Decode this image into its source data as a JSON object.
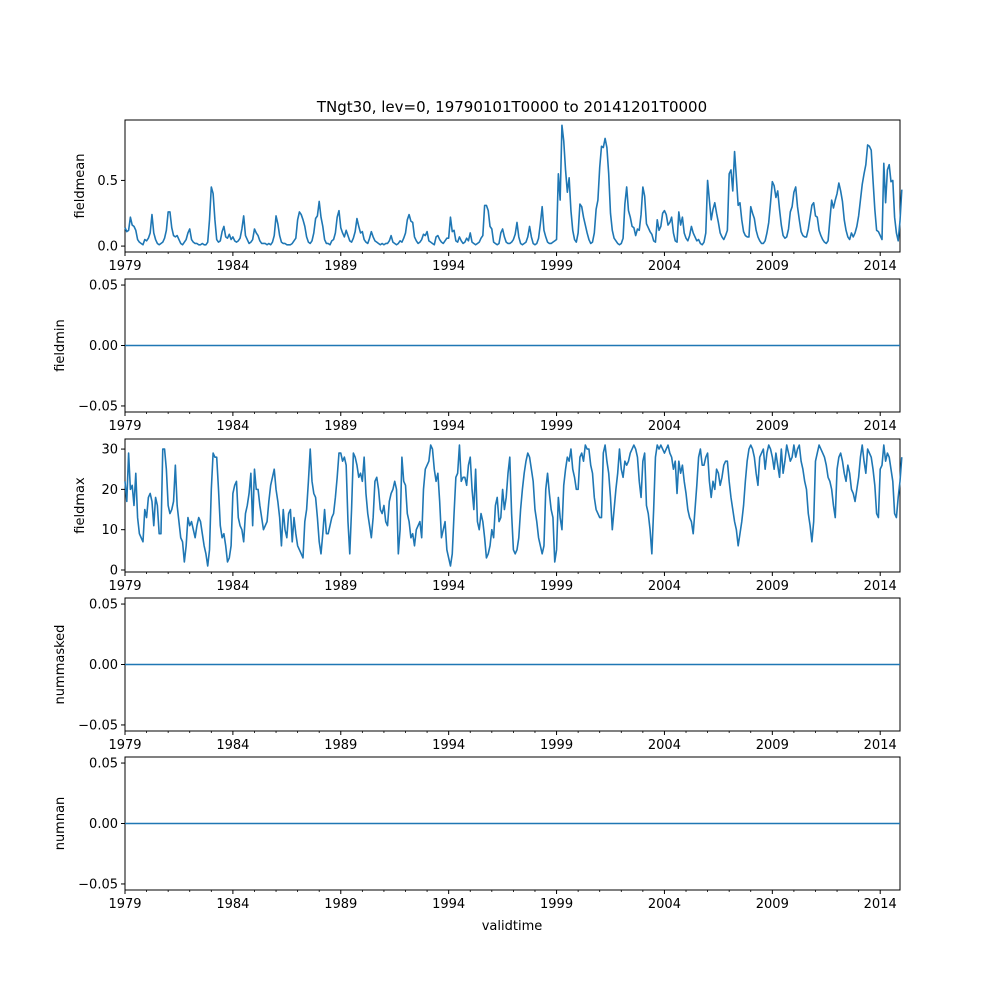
{
  "figure": {
    "title": "TNgt30, lev=0, 19790101T0000 to 20141201T0000",
    "xlabel": "validtime"
  },
  "style": {
    "line_color": "#1f77b4"
  },
  "chart_data": [
    {
      "type": "line",
      "ylabel": "fieldmean",
      "x_range": [
        1979.0,
        2014.917
      ],
      "ylim": [
        -0.045,
        0.96
      ],
      "x_ticks": [
        1979,
        1984,
        1989,
        1994,
        1999,
        2004,
        2009,
        2014
      ],
      "x_tick_labels": [
        "1979",
        "1984",
        "1989",
        "1994",
        "1999",
        "2004",
        "2009",
        "2014"
      ],
      "y_ticks": [
        0.0,
        0.5
      ],
      "y_tick_labels": [
        "0.0",
        "0.5"
      ],
      "series": [
        {
          "name": "fieldmean",
          "start_year": 1979,
          "step_months": 1,
          "values": [
            0.14,
            0.11,
            0.12,
            0.22,
            0.16,
            0.15,
            0.12,
            0.05,
            0.03,
            0.02,
            0.01,
            0.05,
            0.04,
            0.06,
            0.1,
            0.24,
            0.1,
            0.05,
            0.02,
            0.01,
            0.02,
            0.03,
            0.06,
            0.12,
            0.26,
            0.26,
            0.14,
            0.08,
            0.07,
            0.08,
            0.05,
            0.02,
            0.01,
            0.03,
            0.05,
            0.1,
            0.13,
            0.05,
            0.03,
            0.02,
            0.02,
            0.01,
            0.01,
            0.02,
            0.01,
            0.01,
            0.03,
            0.2,
            0.45,
            0.4,
            0.2,
            0.05,
            0.03,
            0.04,
            0.11,
            0.15,
            0.07,
            0.06,
            0.09,
            0.05,
            0.07,
            0.04,
            0.03,
            0.04,
            0.06,
            0.13,
            0.23,
            0.08,
            0.05,
            0.02,
            0.03,
            0.05,
            0.13,
            0.1,
            0.08,
            0.04,
            0.02,
            0.02,
            0.02,
            0.01,
            0.02,
            0.01,
            0.03,
            0.08,
            0.23,
            0.17,
            0.08,
            0.03,
            0.02,
            0.02,
            0.01,
            0.01,
            0.01,
            0.02,
            0.04,
            0.06,
            0.2,
            0.26,
            0.24,
            0.2,
            0.15,
            0.07,
            0.03,
            0.02,
            0.04,
            0.1,
            0.21,
            0.23,
            0.34,
            0.22,
            0.15,
            0.05,
            0.02,
            0.02,
            0.01,
            0.04,
            0.05,
            0.1,
            0.22,
            0.27,
            0.14,
            0.1,
            0.07,
            0.12,
            0.08,
            0.04,
            0.03,
            0.06,
            0.11,
            0.21,
            0.15,
            0.1,
            0.11,
            0.05,
            0.03,
            0.02,
            0.06,
            0.11,
            0.07,
            0.04,
            0.03,
            0.02,
            0.01,
            0.02,
            0.01,
            0.02,
            0.02,
            0.04,
            0.08,
            0.03,
            0.02,
            0.01,
            0.02,
            0.04,
            0.03,
            0.06,
            0.1,
            0.2,
            0.24,
            0.19,
            0.18,
            0.07,
            0.04,
            0.02,
            0.03,
            0.05,
            0.09,
            0.08,
            0.11,
            0.04,
            0.03,
            0.02,
            0.01,
            0.07,
            0.08,
            0.05,
            0.03,
            0.02,
            0.04,
            0.06,
            0.06,
            0.22,
            0.11,
            0.12,
            0.04,
            0.03,
            0.07,
            0.04,
            0.02,
            0.03,
            0.06,
            0.04,
            0.1,
            0.03,
            0.02,
            0.01,
            0.02,
            0.03,
            0.06,
            0.08,
            0.31,
            0.31,
            0.27,
            0.15,
            0.13,
            0.03,
            0.02,
            0.01,
            0.02,
            0.1,
            0.13,
            0.07,
            0.03,
            0.02,
            0.02,
            0.03,
            0.05,
            0.09,
            0.18,
            0.07,
            0.02,
            0.01,
            0.02,
            0.03,
            0.07,
            0.15,
            0.07,
            0.02,
            0.01,
            0.02,
            0.06,
            0.17,
            0.3,
            0.12,
            0.07,
            0.03,
            0.02,
            0.02,
            0.03,
            0.04,
            0.05,
            0.55,
            0.35,
            0.92,
            0.8,
            0.58,
            0.41,
            0.52,
            0.27,
            0.12,
            0.05,
            0.03,
            0.1,
            0.32,
            0.3,
            0.22,
            0.16,
            0.1,
            0.05,
            0.02,
            0.03,
            0.1,
            0.28,
            0.35,
            0.6,
            0.76,
            0.75,
            0.82,
            0.75,
            0.55,
            0.25,
            0.12,
            0.06,
            0.04,
            0.02,
            0.01,
            0.02,
            0.06,
            0.32,
            0.45,
            0.27,
            0.22,
            0.15,
            0.14,
            0.08,
            0.13,
            0.12,
            0.24,
            0.45,
            0.38,
            0.17,
            0.14,
            0.11,
            0.09,
            0.04,
            0.03,
            0.2,
            0.12,
            0.15,
            0.25,
            0.27,
            0.24,
            0.16,
            0.18,
            0.22,
            0.1,
            0.04,
            0.03,
            0.26,
            0.16,
            0.22,
            0.1,
            0.06,
            0.04,
            0.08,
            0.15,
            0.1,
            0.07,
            0.04,
            0.05,
            0.02,
            0.01,
            0.03,
            0.1,
            0.5,
            0.35,
            0.2,
            0.28,
            0.33,
            0.25,
            0.18,
            0.1,
            0.07,
            0.05,
            0.08,
            0.12,
            0.55,
            0.58,
            0.42,
            0.72,
            0.52,
            0.31,
            0.33,
            0.2,
            0.11,
            0.08,
            0.07,
            0.07,
            0.3,
            0.25,
            0.21,
            0.12,
            0.07,
            0.04,
            0.02,
            0.02,
            0.04,
            0.1,
            0.18,
            0.33,
            0.49,
            0.46,
            0.37,
            0.42,
            0.28,
            0.16,
            0.08,
            0.06,
            0.07,
            0.13,
            0.26,
            0.3,
            0.41,
            0.45,
            0.3,
            0.2,
            0.11,
            0.08,
            0.07,
            0.07,
            0.13,
            0.22,
            0.31,
            0.33,
            0.23,
            0.22,
            0.12,
            0.08,
            0.05,
            0.03,
            0.02,
            0.04,
            0.2,
            0.35,
            0.29,
            0.35,
            0.4,
            0.48,
            0.42,
            0.34,
            0.2,
            0.12,
            0.07,
            0.05,
            0.1,
            0.07,
            0.1,
            0.15,
            0.23,
            0.35,
            0.47,
            0.55,
            0.62,
            0.77,
            0.76,
            0.73,
            0.5,
            0.28,
            0.12,
            0.11,
            0.08,
            0.05,
            0.63,
            0.33,
            0.58,
            0.62,
            0.49,
            0.5,
            0.22,
            0.1,
            0.04,
            0.19,
            0.43
          ]
        }
      ]
    },
    {
      "type": "line",
      "ylabel": "fieldmin",
      "x_range": [
        1979.0,
        2014.917
      ],
      "ylim": [
        -0.055,
        0.055
      ],
      "x_ticks": [
        1979,
        1984,
        1989,
        1994,
        1999,
        2004,
        2009,
        2014
      ],
      "x_tick_labels": [
        "1979",
        "1984",
        "1989",
        "1994",
        "1999",
        "2004",
        "2009",
        "2014"
      ],
      "y_ticks": [
        -0.05,
        0.0,
        0.05
      ],
      "y_tick_labels": [
        "−0.05",
        "0.00",
        "0.05"
      ],
      "series": [
        {
          "name": "fieldmin",
          "constant": 0.0
        }
      ]
    },
    {
      "type": "line",
      "ylabel": "fieldmax",
      "x_range": [
        1979.0,
        2014.917
      ],
      "ylim": [
        -0.5,
        32.5
      ],
      "x_ticks": [
        1979,
        1984,
        1989,
        1994,
        1999,
        2004,
        2009,
        2014
      ],
      "x_tick_labels": [
        "1979",
        "1984",
        "1989",
        "1994",
        "1999",
        "2004",
        "2009",
        "2014"
      ],
      "y_ticks": [
        0,
        10,
        20,
        30
      ],
      "y_tick_labels": [
        "0",
        "10",
        "20",
        "30"
      ],
      "series": [
        {
          "name": "fieldmax",
          "start_year": 1979,
          "step_months": 1,
          "values": [
            22,
            17,
            29,
            20,
            21,
            16,
            24,
            13,
            9,
            8,
            7,
            15,
            13,
            18,
            19,
            17,
            11,
            18,
            16,
            9,
            9,
            30,
            30,
            25,
            16,
            14,
            15,
            17,
            26,
            16,
            12,
            8,
            7,
            2,
            6,
            13,
            11,
            12,
            10,
            8,
            11,
            13,
            12,
            9,
            6,
            4,
            1,
            5,
            20,
            29,
            28,
            28,
            20,
            11,
            8,
            9,
            6,
            2,
            3,
            6,
            19,
            21,
            22,
            13,
            11,
            10,
            7,
            14,
            16,
            19,
            24,
            11,
            25,
            20,
            20,
            16,
            13,
            10,
            11,
            12,
            17,
            21,
            23,
            25,
            20,
            17,
            13,
            6,
            15,
            10,
            8,
            14,
            15,
            7,
            13,
            9,
            6,
            5,
            4,
            3,
            12,
            15,
            22,
            30,
            22,
            19,
            18,
            13,
            7,
            4,
            9,
            15,
            9,
            9,
            11,
            13,
            14,
            18,
            23,
            29,
            29,
            27,
            28,
            26,
            12,
            4,
            15,
            29,
            28,
            26,
            23,
            24,
            22,
            28,
            19,
            14,
            11,
            8,
            13,
            22,
            23,
            20,
            15,
            14,
            16,
            12,
            11,
            17,
            19,
            20,
            22,
            20,
            4,
            10,
            28,
            22,
            21,
            14,
            12,
            8,
            9,
            6,
            10,
            11,
            12,
            8,
            20,
            25,
            26,
            27,
            31,
            30,
            25,
            22,
            24,
            17,
            8,
            10,
            12,
            5,
            3,
            1,
            4,
            14,
            23,
            24,
            31,
            22,
            23,
            23,
            21,
            26,
            28,
            20,
            15,
            25,
            12,
            10,
            14,
            12,
            8,
            3,
            4,
            6,
            10,
            8,
            16,
            18,
            12,
            13,
            20,
            15,
            18,
            24,
            28,
            14,
            5,
            4,
            5,
            8,
            15,
            20,
            24,
            27,
            29,
            28,
            25,
            22,
            15,
            12,
            8,
            6,
            4,
            6,
            20,
            24,
            19,
            15,
            13,
            2,
            5,
            18,
            13,
            10,
            21,
            25,
            28,
            27,
            30,
            25,
            23,
            20,
            20,
            28,
            29,
            27,
            31,
            30,
            30,
            26,
            24,
            18,
            15,
            14,
            13,
            13,
            29,
            31,
            27,
            24,
            18,
            10,
            15,
            20,
            24,
            30,
            25,
            23,
            27,
            26,
            27,
            29,
            30,
            31,
            30,
            28,
            22,
            18,
            27,
            29,
            16,
            14,
            10,
            4,
            15,
            28,
            31,
            30,
            31,
            30,
            29,
            30,
            31,
            29,
            28,
            25,
            27,
            19,
            27,
            24,
            26,
            22,
            19,
            15,
            13,
            12,
            9,
            15,
            21,
            28,
            30,
            26,
            26,
            28,
            29,
            22,
            18,
            22,
            20,
            25,
            24,
            21,
            23,
            26,
            27,
            27,
            22,
            18,
            15,
            12,
            10,
            6,
            9,
            12,
            16,
            22,
            27,
            30,
            31,
            30,
            28,
            24,
            21,
            28,
            29,
            30,
            25,
            29,
            31,
            30,
            28,
            25,
            29,
            26,
            23,
            30,
            24,
            27,
            31,
            29,
            27,
            28,
            31,
            28,
            30,
            31,
            27,
            25,
            22,
            20,
            14,
            11,
            7,
            12,
            27,
            29,
            31,
            30,
            29,
            28,
            26,
            23,
            22,
            20,
            16,
            13,
            25,
            28,
            29,
            27,
            24,
            22,
            26,
            24,
            20,
            19,
            17,
            20,
            23,
            28,
            31,
            27,
            24,
            30,
            29,
            28,
            25,
            21,
            14,
            13,
            25,
            26,
            31,
            27,
            29,
            28,
            25,
            22,
            14,
            13,
            18,
            22,
            28
          ]
        }
      ]
    },
    {
      "type": "line",
      "ylabel": "nummasked",
      "x_range": [
        1979.0,
        2014.917
      ],
      "ylim": [
        -0.055,
        0.055
      ],
      "x_ticks": [
        1979,
        1984,
        1989,
        1994,
        1999,
        2004,
        2009,
        2014
      ],
      "x_tick_labels": [
        "1979",
        "1984",
        "1989",
        "1994",
        "1999",
        "2004",
        "2009",
        "2014"
      ],
      "y_ticks": [
        -0.05,
        0.0,
        0.05
      ],
      "y_tick_labels": [
        "−0.05",
        "0.00",
        "0.05"
      ],
      "series": [
        {
          "name": "nummasked",
          "constant": 0.0
        }
      ]
    },
    {
      "type": "line",
      "ylabel": "numnan",
      "x_range": [
        1979.0,
        2014.917
      ],
      "ylim": [
        -0.055,
        0.055
      ],
      "x_ticks": [
        1979,
        1984,
        1989,
        1994,
        1999,
        2004,
        2009,
        2014
      ],
      "x_tick_labels": [
        "1979",
        "1984",
        "1989",
        "1994",
        "1999",
        "2004",
        "2009",
        "2014"
      ],
      "y_ticks": [
        -0.05,
        0.0,
        0.05
      ],
      "y_tick_labels": [
        "−0.05",
        "0.00",
        "0.05"
      ],
      "series": [
        {
          "name": "numnan",
          "constant": 0.0
        }
      ]
    }
  ]
}
